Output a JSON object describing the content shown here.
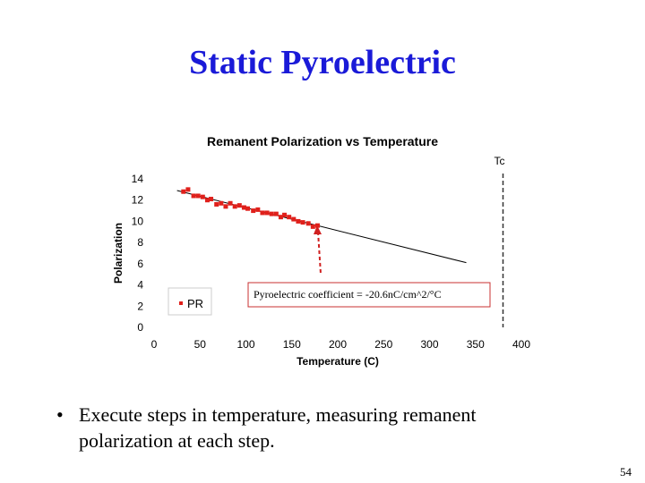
{
  "slide_title": "Static Pyroelectric",
  "bullet": "Execute steps in temperature, measuring remanent polarization at each step.",
  "page_number": "54",
  "chart_data": {
    "type": "scatter",
    "title": "Remanent Polarization vs Temperature",
    "x_label": "Temperature (C)",
    "y_label": "Polarization",
    "xlim": [
      0,
      400
    ],
    "xticks": [
      0,
      50,
      100,
      150,
      200,
      250,
      300,
      350,
      400
    ],
    "ylim": [
      0,
      14
    ],
    "yticks": [
      0,
      2,
      4,
      6,
      8,
      10,
      12,
      14
    ],
    "grid": false,
    "legend": "lower left",
    "series": [
      {
        "name": "PR",
        "color": "#e0201b",
        "x": [
          32,
          37,
          43,
          48,
          53,
          58,
          62,
          68,
          73,
          78,
          83,
          88,
          93,
          98,
          102,
          108,
          113,
          118,
          123,
          128,
          133,
          138,
          142,
          147,
          152,
          157,
          162,
          168,
          173,
          178
        ],
        "values": [
          12.8,
          13.0,
          12.4,
          12.4,
          12.3,
          12.0,
          12.1,
          11.6,
          11.7,
          11.4,
          11.7,
          11.4,
          11.5,
          11.3,
          11.2,
          11.0,
          11.1,
          10.8,
          10.8,
          10.7,
          10.7,
          10.4,
          10.6,
          10.4,
          10.2,
          10.0,
          9.9,
          9.8,
          9.5,
          9.6
        ]
      }
    ],
    "trendline": {
      "x": [
        25,
        340
      ],
      "y": [
        12.9,
        6.1
      ]
    },
    "tc_label": "Tc",
    "tc_x": 380,
    "annotation": "Pyroelectric coefficient = -20.6nC/cm^2/°C"
  }
}
